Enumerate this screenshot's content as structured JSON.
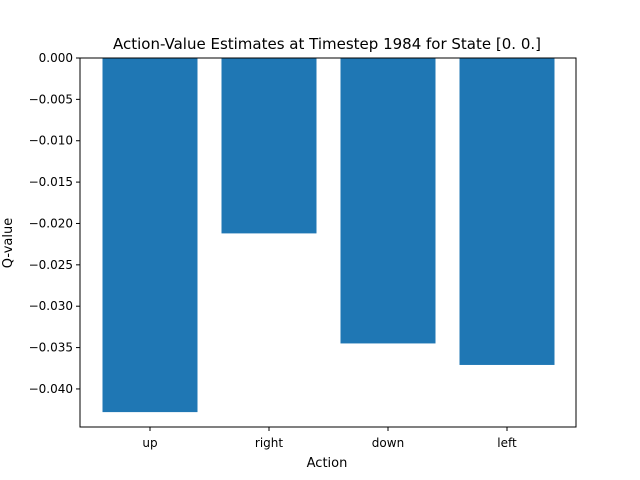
{
  "chart_data": {
    "type": "bar",
    "title": "Action-Value Estimates at Timestep 1984 for State [0. 0.]",
    "xlabel": "Action",
    "ylabel": "Q-value",
    "categories": [
      "up",
      "right",
      "down",
      "left"
    ],
    "values": [
      -0.0428,
      -0.0212,
      -0.0345,
      -0.0371
    ],
    "ylim": [
      -0.0446,
      0.0
    ],
    "yticks": [
      0.0,
      -0.005,
      -0.01,
      -0.015,
      -0.02,
      -0.025,
      -0.03,
      -0.035,
      -0.04
    ],
    "ytick_labels": [
      "0.000",
      "−0.005",
      "−0.010",
      "−0.015",
      "−0.020",
      "−0.025",
      "−0.030",
      "−0.035",
      "−0.040"
    ],
    "grid": false,
    "bar_color": "#1f77b4"
  }
}
